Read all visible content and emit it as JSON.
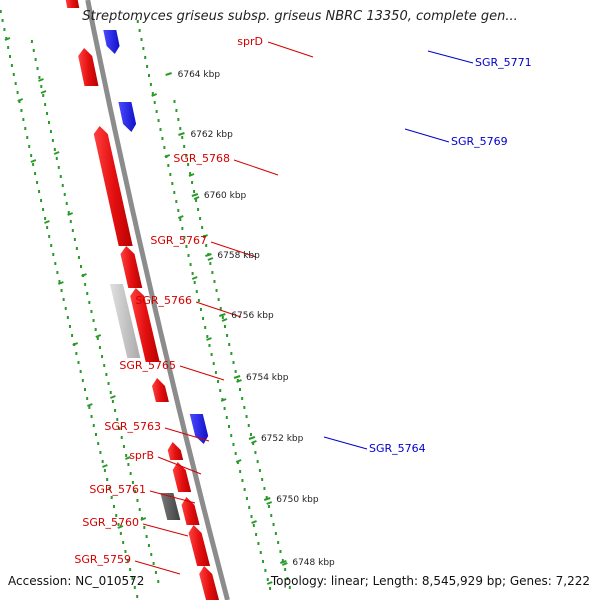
{
  "title": "Streptomyces griseus subsp. griseus NBRC 13350, complete gen...",
  "accession": "Accession: NC_010572",
  "topology": "Topology: linear; Length: 8,545,929 bp; Genes: 7,222",
  "colors": {
    "forward_gene": "#e41010",
    "reverse_gene": "#1414e0",
    "pseudo_gene_dark": "#505050",
    "pseudo_gene_light": "#c8c8c8",
    "backbone": "#8c8c8c",
    "orf_dots": "#2a9a2a",
    "label_forward": "#d40000",
    "label_reverse": "#0000cc"
  },
  "scale_ticks_kbp": [
    {
      "label": "6748 kbp"
    },
    {
      "label": "6750 kbp"
    },
    {
      "label": "6752 kbp"
    },
    {
      "label": "6754 kbp"
    },
    {
      "label": "6756 kbp"
    },
    {
      "label": "6758 kbp"
    },
    {
      "label": "6760 kbp"
    },
    {
      "label": "6762 kbp"
    },
    {
      "label": "6764 kbp"
    }
  ],
  "genes": [
    {
      "label": "sprD",
      "strand": "forward"
    },
    {
      "label": "SGR_5768",
      "strand": "forward"
    },
    {
      "label": "SGR_5767",
      "strand": "forward"
    },
    {
      "label": "SGR_5766",
      "strand": "forward"
    },
    {
      "label": "SGR_5765",
      "strand": "forward"
    },
    {
      "label": "SGR_5763",
      "strand": "forward"
    },
    {
      "label": "sprB",
      "strand": "forward"
    },
    {
      "label": "SGR_5761",
      "strand": "forward"
    },
    {
      "label": "SGR_5760",
      "strand": "forward"
    },
    {
      "label": "SGR_5759",
      "strand": "forward"
    },
    {
      "label": "SGR_5771",
      "strand": "reverse"
    },
    {
      "label": "SGR_5769",
      "strand": "reverse"
    },
    {
      "label": "SGR_5764",
      "strand": "reverse"
    }
  ]
}
